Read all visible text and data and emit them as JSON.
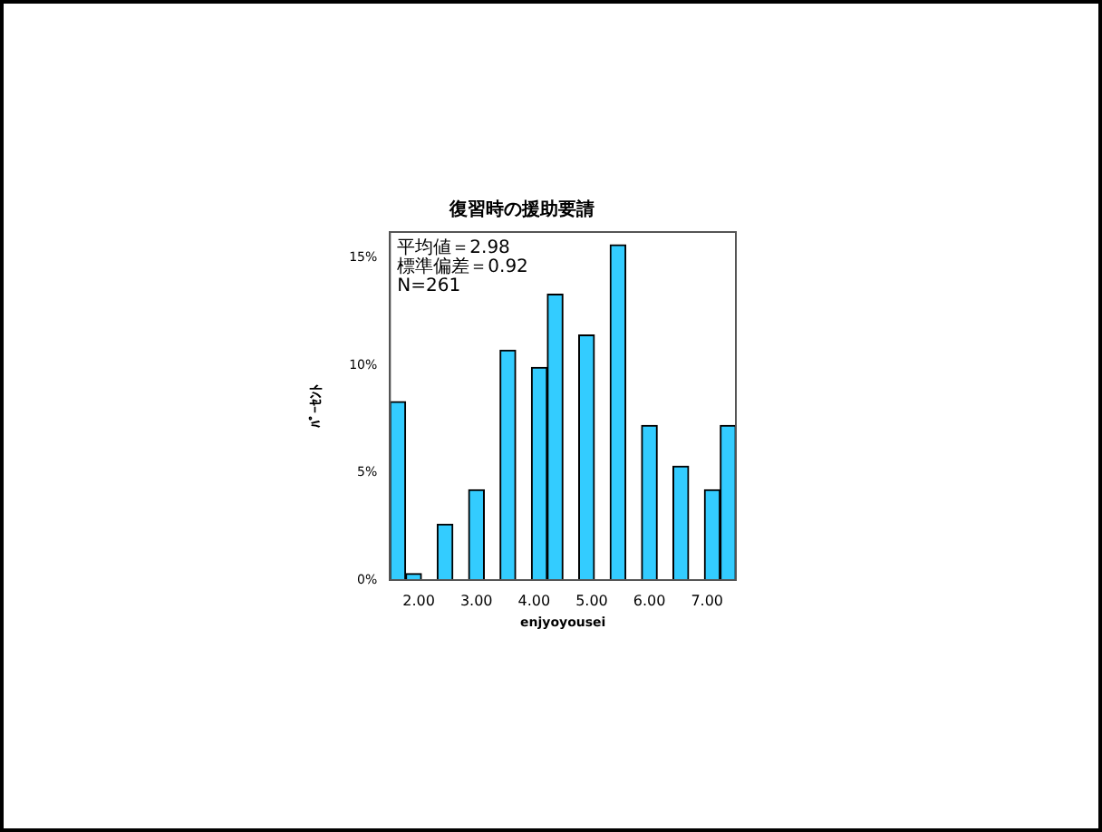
{
  "chart_data": {
    "type": "histogram",
    "title": "復習時の援助要請",
    "xlabel": "enjyoyousei",
    "ylabel": "ﾊﾟｰｾﾝﾄ",
    "bins": [
      1.5,
      1.77,
      2.05,
      2.32,
      2.59,
      2.86,
      3.14,
      3.41,
      3.68,
      3.95,
      4.23,
      4.5,
      4.77,
      5.05,
      5.32,
      5.59,
      5.86,
      6.14,
      6.41,
      6.68,
      6.95,
      7.23,
      7.5
    ],
    "values": [
      8.3,
      0.3,
      0,
      2.6,
      0,
      4.2,
      0,
      10.7,
      0,
      9.9,
      13.3,
      0,
      11.4,
      0,
      15.6,
      0,
      7.2,
      0,
      5.3,
      0,
      4.2,
      7.2
    ],
    "color": "#33ccff",
    "xlim": [
      1.5,
      7.5
    ],
    "xticks": [
      {
        "value": 2,
        "label": "2.00"
      },
      {
        "value": 3,
        "label": "3.00"
      },
      {
        "value": 4,
        "label": "4.00"
      },
      {
        "value": 5,
        "label": "5.00"
      },
      {
        "value": 6,
        "label": "6.00"
      },
      {
        "value": 7,
        "label": "7.00"
      }
    ],
    "ylim": [
      0,
      16.2
    ],
    "yticks": [
      {
        "value": 0,
        "label": "0%"
      },
      {
        "value": 5,
        "label": "5%"
      },
      {
        "value": 10,
        "label": "10%"
      },
      {
        "value": 15,
        "label": "15%"
      }
    ],
    "annotations": [
      "平均値＝2.98",
      "標準偏差＝0.92",
      "N=261"
    ]
  }
}
